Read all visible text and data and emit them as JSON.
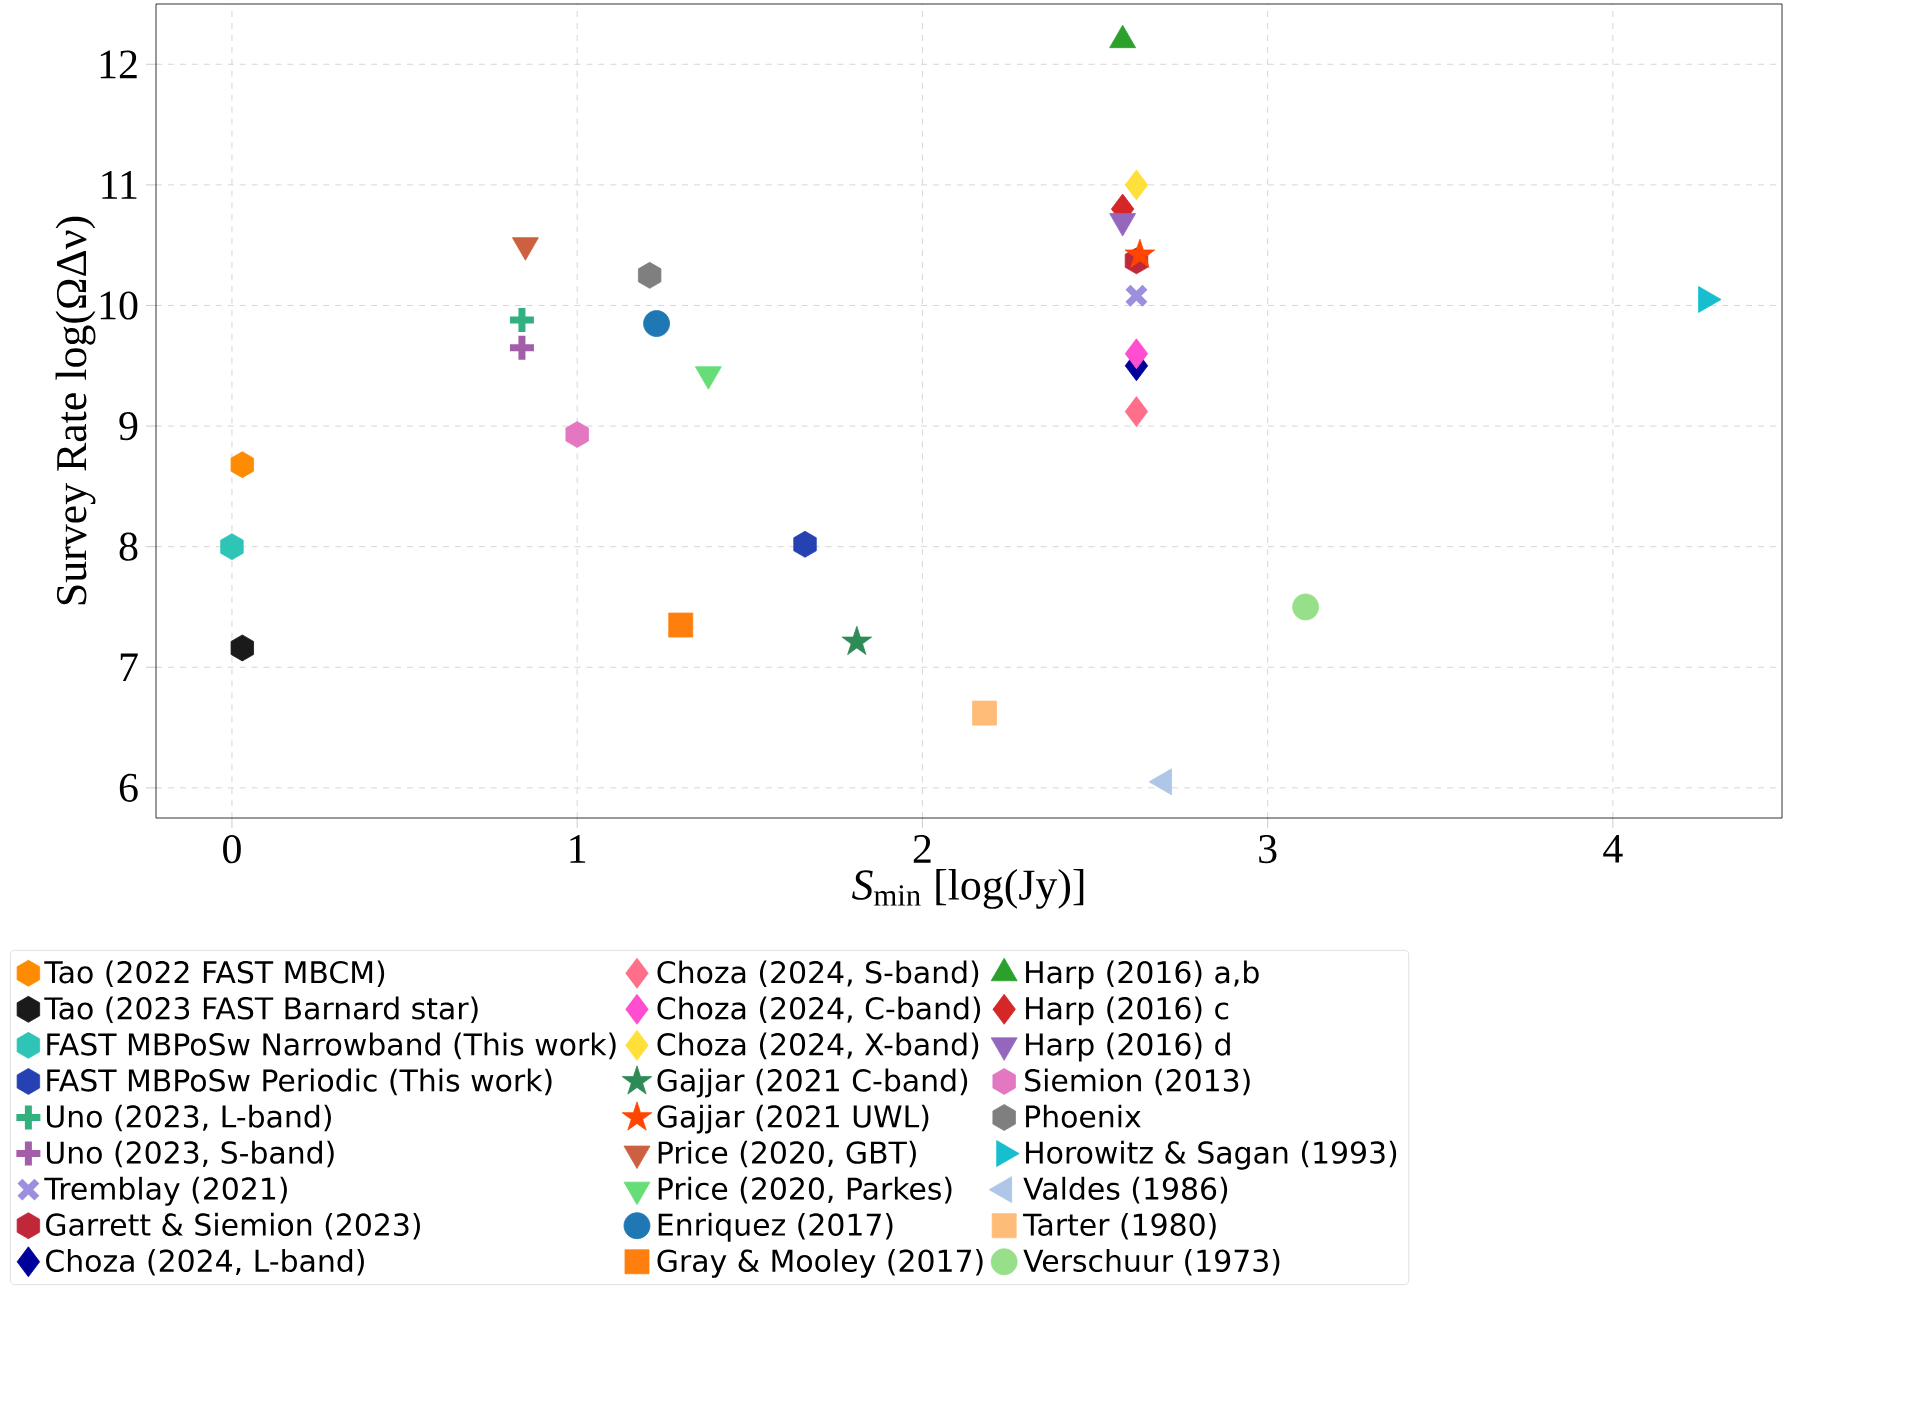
{
  "chart_data": {
    "type": "scatter",
    "xlabel": "*S*$_{min}$ [log(Jy)]",
    "ylabel": "Survey Rate log(ΩΔν)",
    "xlim": [
      -0.22,
      4.49
    ],
    "ylim": [
      5.75,
      12.5
    ],
    "xticks": [
      0,
      1,
      2,
      3,
      4
    ],
    "yticks": [
      6,
      7,
      8,
      9,
      10,
      11,
      12
    ],
    "grid": true,
    "legend": "bottom",
    "series": [
      {
        "name": "Tao (2022 FAST MBCM)",
        "color": "#ff8c00",
        "x": [
          0.03
        ],
        "values": [
          8.68
        ]
      },
      {
        "name": "Tao (2023 FAST Barnard star)",
        "color": "#1a1a1a",
        "x": [
          0.03
        ],
        "values": [
          7.16
        ]
      },
      {
        "name": "FAST MBPoSw Narrowband (This work)",
        "color": "#2ec4b6",
        "x": [
          0.0
        ],
        "values": [
          8.0
        ]
      },
      {
        "name": "FAST MBPoSw Periodic (This work)",
        "color": "#2541b2",
        "x": [
          1.66
        ],
        "values": [
          8.02
        ]
      },
      {
        "name": "Uno (2023, L-band)",
        "color": "#33b07f",
        "marker": "plus",
        "x": [
          0.84
        ],
        "values": [
          9.88
        ]
      },
      {
        "name": "Uno (2023, S-band)",
        "color": "#a25ea8",
        "marker": "plus",
        "x": [
          0.84
        ],
        "values": [
          9.65
        ]
      },
      {
        "name": "Tremblay (2021)",
        "color": "#9b8fe0",
        "marker": "cross",
        "x": [
          2.62
        ],
        "values": [
          10.08
        ]
      },
      {
        "name": "Garrett & Siemion (2023)",
        "color": "#c0283a",
        "x": [
          2.62
        ],
        "values": [
          10.37
        ]
      },
      {
        "name": "Choza (2024, L-band)",
        "color": "#00009b",
        "marker": "diamond",
        "x": [
          2.62
        ],
        "values": [
          9.5
        ]
      },
      {
        "name": "Choza (2024, S-band)",
        "color": "#ff6f8a",
        "marker": "diamond",
        "x": [
          2.62
        ],
        "values": [
          9.12
        ]
      },
      {
        "name": "Choza (2024, C-band)",
        "color": "#ff4fd0",
        "marker": "diamond",
        "x": [
          2.62
        ],
        "values": [
          9.6
        ]
      },
      {
        "name": "Choza (2024, X-band)",
        "color": "#ffe03a",
        "marker": "diamond",
        "x": [
          2.62
        ],
        "values": [
          11.0
        ]
      },
      {
        "name": "Gajjar (2021 C-band)",
        "color": "#2e8b57",
        "marker": "star",
        "x": [
          1.81
        ],
        "values": [
          7.21
        ]
      },
      {
        "name": "Gajjar (2021 UWL)",
        "color": "#ff4500",
        "marker": "star",
        "x": [
          2.63
        ],
        "values": [
          10.42
        ]
      },
      {
        "name": "Price (2020, GBT)",
        "color": "#cc6040",
        "marker": "triangle-down",
        "x": [
          0.85
        ],
        "values": [
          10.5
        ]
      },
      {
        "name": "Price (2020, Parkes)",
        "color": "#66dd77",
        "marker": "triangle-down",
        "x": [
          1.38
        ],
        "values": [
          9.43
        ]
      },
      {
        "name": "Enriquez (2017)",
        "color": "#1f77b4",
        "marker": "circle",
        "x": [
          1.23
        ],
        "values": [
          9.85
        ]
      },
      {
        "name": "Gray & Mooley (2017)",
        "color": "#ff7f0e",
        "marker": "square",
        "x": [
          1.3
        ],
        "values": [
          7.35
        ]
      },
      {
        "name": "Harp (2016) a,b",
        "color": "#2ca02c",
        "marker": "triangle",
        "x": [
          2.58
        ],
        "values": [
          12.2
        ]
      },
      {
        "name": "Harp (2016) c",
        "color": "#d62728",
        "marker": "diamond",
        "x": [
          2.58
        ],
        "values": [
          10.8
        ]
      },
      {
        "name": "Harp (2016) d",
        "color": "#9467bd",
        "marker": "triangle-down",
        "x": [
          2.58
        ],
        "values": [
          10.7
        ]
      },
      {
        "name": "Siemion (2013)",
        "color": "#e377c2",
        "x": [
          1.0
        ],
        "values": [
          8.93
        ]
      },
      {
        "name": "Phoenix",
        "color": "#7f7f7f",
        "x": [
          1.21
        ],
        "values": [
          10.25
        ]
      },
      {
        "name": "Horowitz & Sagan (1993)",
        "color": "#17becf",
        "marker": "triangle-right",
        "x": [
          4.27
        ],
        "values": [
          10.05
        ]
      },
      {
        "name": "Valdes (1986)",
        "color": "#aec7e8",
        "marker": "triangle-left",
        "x": [
          2.7
        ],
        "values": [
          6.05
        ]
      },
      {
        "name": "Tarter (1980)",
        "color": "#ffbb78",
        "marker": "square",
        "x": [
          2.18
        ],
        "values": [
          6.62
        ]
      },
      {
        "name": "Verschuur (1973)",
        "color": "#98df8a",
        "marker": "circle",
        "x": [
          3.11
        ],
        "values": [
          7.5
        ]
      }
    ]
  }
}
